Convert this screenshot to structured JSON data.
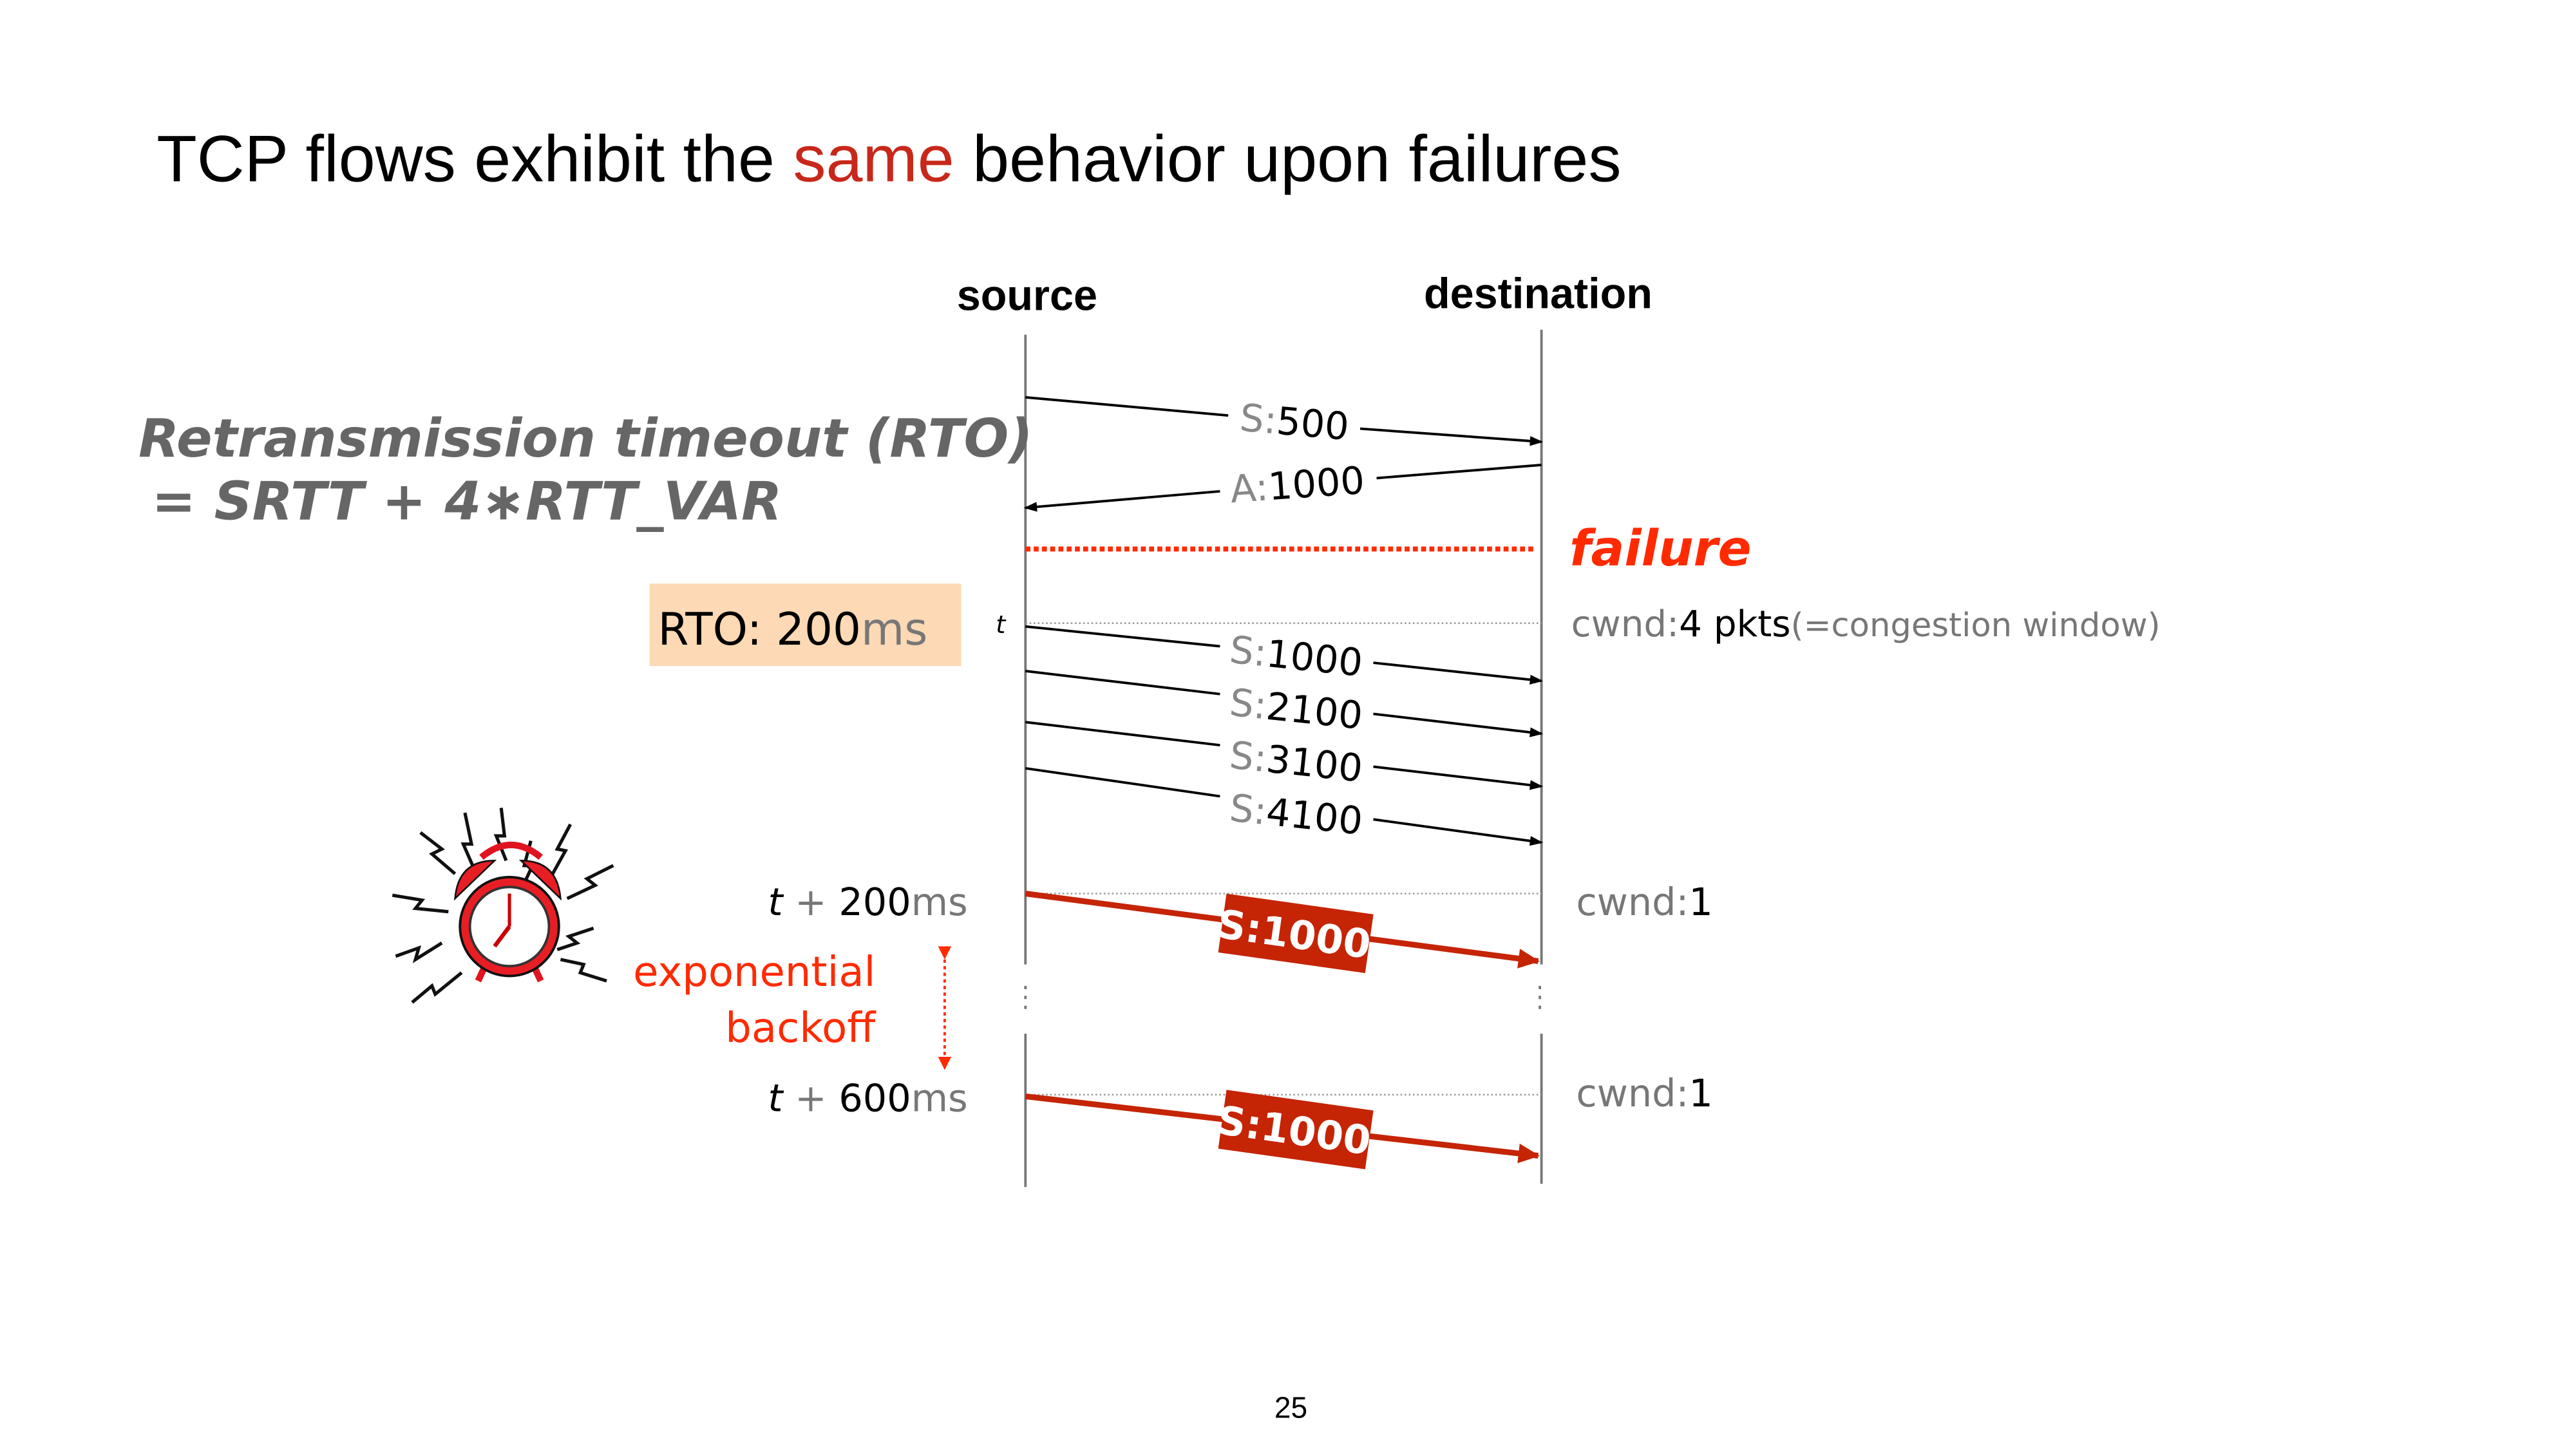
{
  "title": {
    "part1": "TCP flows exhibit the ",
    "highlight": "same",
    "part2": " behavior upon failures"
  },
  "endpoints": {
    "source": "source",
    "destination": "destination"
  },
  "formula": {
    "line1": "Retransmission timeout (RTO)",
    "line2": "= SRTT + 4∗RTT_VAR"
  },
  "rto_box": {
    "label": "RTO: 200",
    "unit": "ms"
  },
  "messages": [
    {
      "prefix": "S:",
      "value": "500"
    },
    {
      "prefix": "A:",
      "value": "1000"
    },
    {
      "prefix": "S:",
      "value": "1000"
    },
    {
      "prefix": "S:",
      "value": "2100"
    },
    {
      "prefix": "S:",
      "value": "3100"
    },
    {
      "prefix": "S:",
      "value": "4100"
    }
  ],
  "failure": "failure",
  "time_t": "t",
  "cwnd_initial": {
    "prefix": "cwnd:",
    "value": "4 pkts",
    "note": "(=congestion window)"
  },
  "retransmissions": [
    {
      "t": "t",
      "plus": " + ",
      "value": "200",
      "unit": "ms",
      "packet": "S:1000",
      "cwnd_prefix": "cwnd:",
      "cwnd_value": "1"
    },
    {
      "t": "t",
      "plus": " + ",
      "value": "600",
      "unit": "ms",
      "packet": "S:1000",
      "cwnd_prefix": "cwnd:",
      "cwnd_value": "1"
    }
  ],
  "backoff": {
    "line1": "exponential",
    "line2": "backoff"
  },
  "page_number": "25",
  "colors": {
    "accent_red": "#c8281a",
    "failure_red": "#ff2a00",
    "gray_text": "#666666",
    "rto_box": "#fdd9b5",
    "packet_box": "#c52405"
  },
  "icons": [
    "alarm-clock-icon"
  ]
}
